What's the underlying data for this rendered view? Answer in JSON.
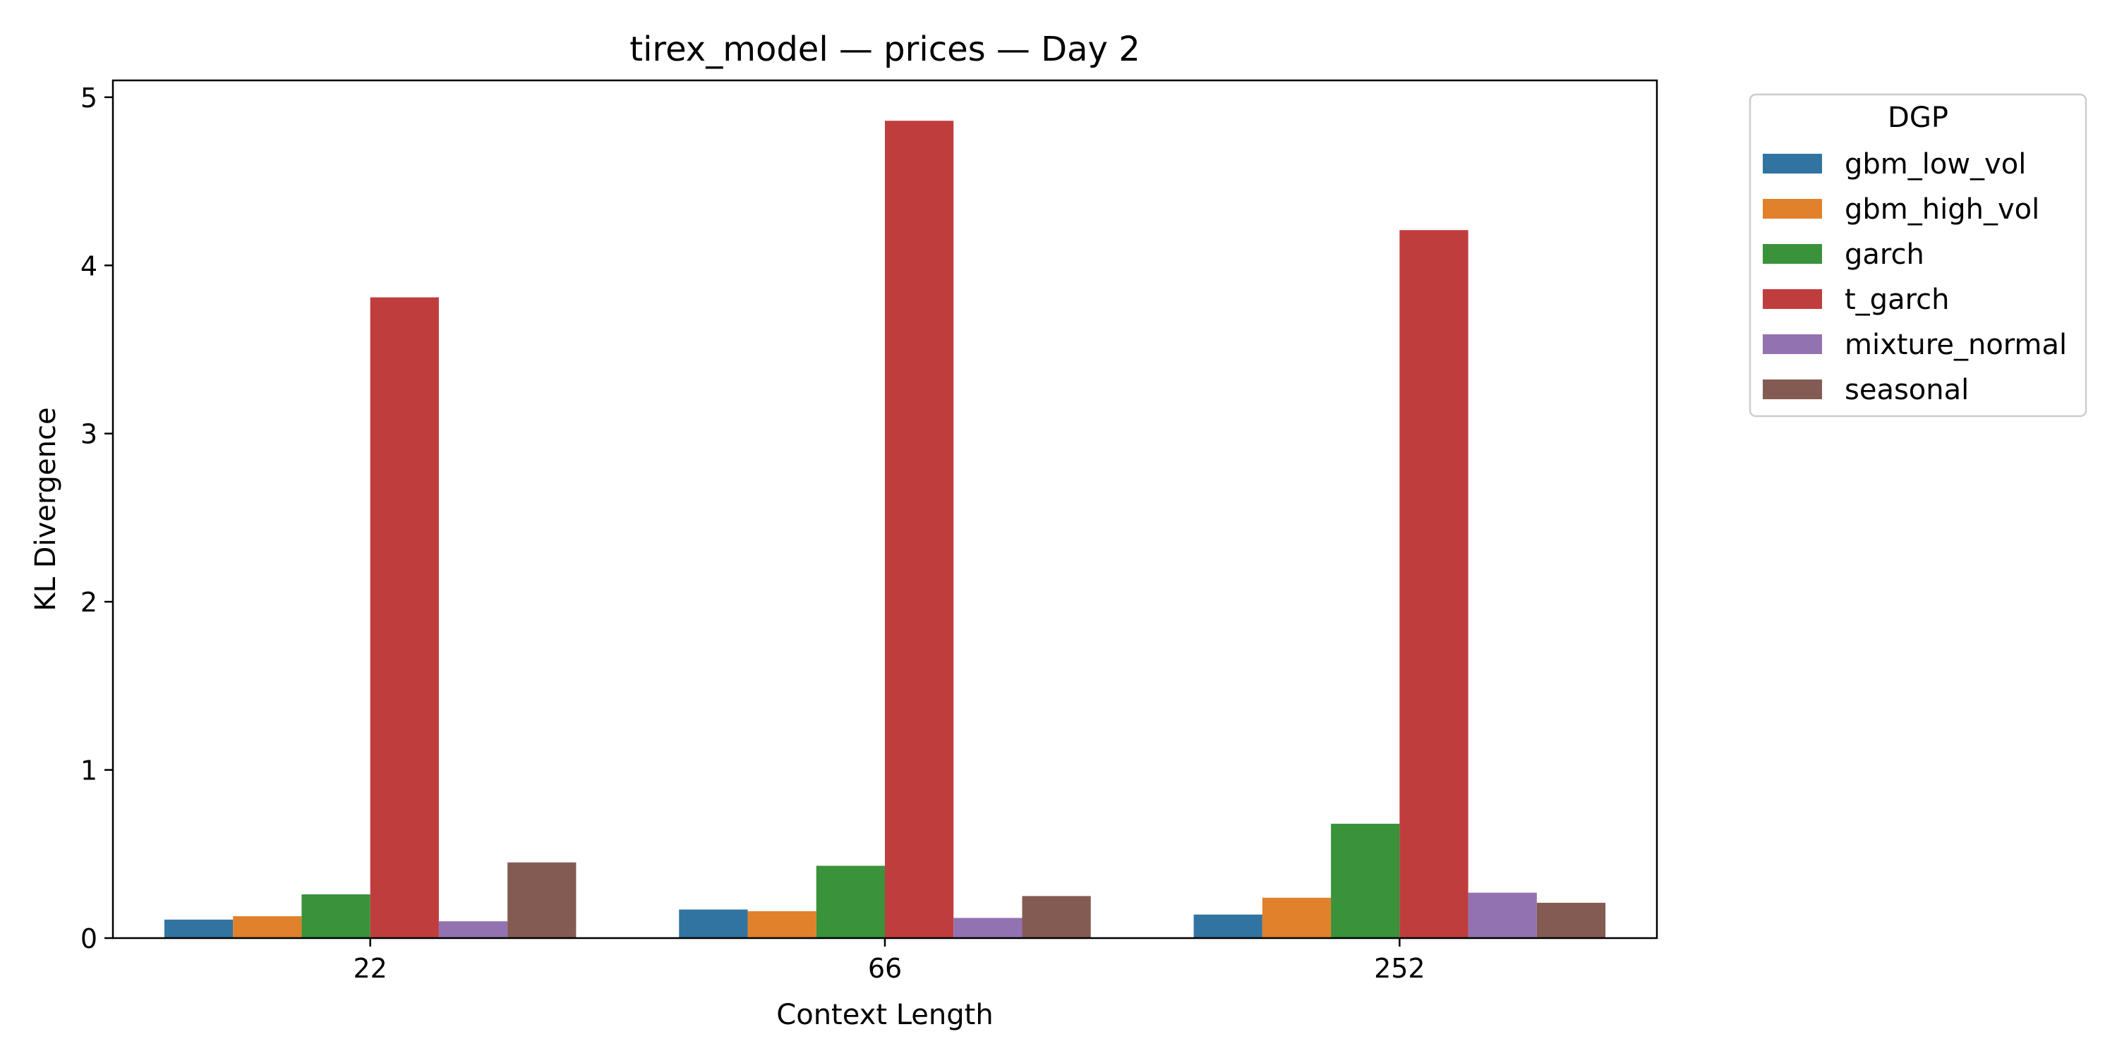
{
  "chart_data": {
    "type": "bar",
    "title": "tirex_model — prices — Day 2",
    "xlabel": "Context Length",
    "ylabel": "KL Divergence",
    "categories": [
      "22",
      "66",
      "252"
    ],
    "ylim": [
      0,
      5.1
    ],
    "yticks": [
      0,
      1,
      2,
      3,
      4,
      5
    ],
    "grid": false,
    "legend": {
      "title": "DGP",
      "placement": "outside-top-right"
    },
    "series": [
      {
        "name": "gbm_low_vol",
        "color": "#3274a1",
        "values": [
          0.11,
          0.17,
          0.14
        ]
      },
      {
        "name": "gbm_high_vol",
        "color": "#e1812c",
        "values": [
          0.13,
          0.16,
          0.24
        ]
      },
      {
        "name": "garch",
        "color": "#3a923a",
        "values": [
          0.26,
          0.43,
          0.68
        ]
      },
      {
        "name": "t_garch",
        "color": "#c03d3e",
        "values": [
          3.81,
          4.86,
          4.21
        ]
      },
      {
        "name": "mixture_normal",
        "color": "#9372b2",
        "values": [
          0.1,
          0.12,
          0.27
        ]
      },
      {
        "name": "seasonal",
        "color": "#845b53",
        "values": [
          0.45,
          0.25,
          0.21
        ]
      }
    ]
  }
}
